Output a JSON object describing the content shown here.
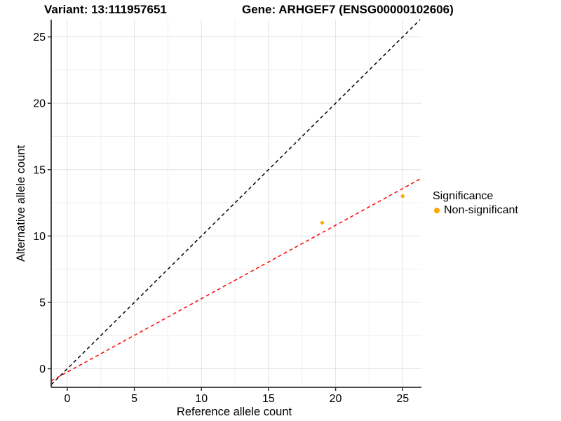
{
  "titles": {
    "variant": "Variant: 13:111957651",
    "gene": "Gene: ARHGEF7 (ENSG00000102606)"
  },
  "legend": {
    "title": "Significance",
    "items": [
      {
        "label": "Non-significant",
        "color": "#FFA500"
      }
    ]
  },
  "chart_data": {
    "type": "scatter",
    "xlabel": "Reference allele count",
    "ylabel": "Alternative allele count",
    "xlim": [
      -1.2,
      26.4
    ],
    "ylim": [
      -1.4,
      26.3
    ],
    "x_ticks": [
      0,
      5,
      10,
      15,
      20,
      25
    ],
    "y_ticks": [
      0,
      5,
      10,
      15,
      20,
      25
    ],
    "x_minor_ticks": [
      2.5,
      7.5,
      12.5,
      17.5,
      22.5
    ],
    "y_minor_ticks": [
      2.5,
      7.5,
      12.5,
      17.5,
      22.5
    ],
    "grid": true,
    "legend_position": "right",
    "points": [
      {
        "x": 19,
        "y": 11,
        "series": "Non-significant"
      },
      {
        "x": 25,
        "y": 13,
        "series": "Non-significant"
      }
    ],
    "point_color": "#FFA500",
    "lines": [
      {
        "name": "identity-line",
        "slope": 1,
        "intercept": 0,
        "color": "#000000",
        "style": "dashed"
      },
      {
        "name": "fit-line",
        "slope": 0.553,
        "intercept": -0.25,
        "color": "#FF0000",
        "style": "dashed"
      }
    ],
    "colors": {
      "grid_major": "#E3E3E3",
      "grid_minor": "#F0F0F0",
      "axis": "#333333",
      "text": "#000000"
    }
  }
}
